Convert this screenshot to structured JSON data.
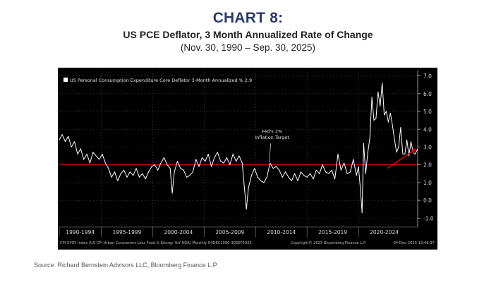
{
  "header": {
    "chart_label": "CHART 8:",
    "title": "US PCE Deflator, 3 Month Annualized Rate of Change",
    "subtitle": "(Nov. 30, 1990 – Sep. 30, 2025)"
  },
  "footer": {
    "source": "Source: Richard Bernstein Advisors LLC, Bloomberg Finance L.P."
  },
  "chart_data": {
    "type": "line",
    "title": "US PCE Deflator, 3 Month Annualized Rate of Change",
    "legend": {
      "label": "US Personal Consumption Expenditure Core Deflator 3-Month Annualized % 2.9",
      "placement": "top-left"
    },
    "ylim": [
      -1.5,
      7.3
    ],
    "y_ticks": [
      7.0,
      6.0,
      5.0,
      4.0,
      3.0,
      2.0,
      1.0,
      0.0,
      -1.0
    ],
    "y_tick_labels": [
      "7.0",
      "6.0",
      "5.0",
      "4.0",
      "3.0",
      "2.0",
      "1.0",
      "0.0",
      "-1.0"
    ],
    "xlim": [
      1990.92,
      2025.75
    ],
    "x_bands": [
      {
        "label": "1990-1994",
        "start": 1990.92,
        "end": 1995.0
      },
      {
        "label": "1995-1999",
        "start": 1995.0,
        "end": 2000.0
      },
      {
        "label": "2000-2004",
        "start": 2000.0,
        "end": 2005.0
      },
      {
        "label": "2005-2009",
        "start": 2005.0,
        "end": 2010.0
      },
      {
        "label": "2010-2014",
        "start": 2010.0,
        "end": 2015.0
      },
      {
        "label": "2015-2019",
        "start": 2015.0,
        "end": 2020.0
      },
      {
        "label": "2020-2024",
        "start": 2020.0,
        "end": 2025.0
      }
    ],
    "reference_line": {
      "y": 2.0,
      "color": "#e00000"
    },
    "annotation": {
      "lines": [
        "Fed's 2%",
        "Inflation Target"
      ],
      "x": 2011.6,
      "y": 2.0
    },
    "arrow": {
      "from": [
        2022.8,
        1.8
      ],
      "to": [
        2025.6,
        2.9
      ],
      "color": "#e00000"
    },
    "footer_left": "CPI XYOY Index (US CPI Urban Consumers Less Food & Energy YoY NSA) Monthly 04DEC1990-30SEP2025",
    "footer_right": "Copyright© 2025 Bloomberg Finance L.P.",
    "timestamp": "04-Dec-2025 13:46:37",
    "series": [
      {
        "name": "US Personal Consumption Expenditure Core Deflator 3-Month Annualized %",
        "last_value": 2.9,
        "color": "#ffffff",
        "x": [
          1990.92,
          1991.2,
          1991.5,
          1991.8,
          1992.1,
          1992.4,
          1992.7,
          1993.0,
          1993.3,
          1993.6,
          1993.9,
          1994.2,
          1994.5,
          1994.8,
          1995.1,
          1995.4,
          1995.7,
          1996.0,
          1996.3,
          1996.6,
          1996.9,
          1997.2,
          1997.5,
          1997.8,
          1998.1,
          1998.4,
          1998.7,
          1999.0,
          1999.3,
          1999.6,
          1999.9,
          2000.2,
          2000.5,
          2000.8,
          2001.1,
          2001.4,
          2001.7,
          2001.9,
          2002.1,
          2002.4,
          2002.7,
          2003.0,
          2003.3,
          2003.6,
          2003.9,
          2004.2,
          2004.5,
          2004.8,
          2005.1,
          2005.4,
          2005.7,
          2006.0,
          2006.3,
          2006.6,
          2006.9,
          2007.2,
          2007.5,
          2007.8,
          2008.1,
          2008.4,
          2008.7,
          2008.9,
          2009.1,
          2009.3,
          2009.6,
          2009.9,
          2010.2,
          2010.5,
          2010.8,
          2011.1,
          2011.4,
          2011.7,
          2012.0,
          2012.3,
          2012.6,
          2012.9,
          2013.2,
          2013.5,
          2013.8,
          2014.1,
          2014.4,
          2014.7,
          2015.0,
          2015.3,
          2015.6,
          2015.9,
          2016.2,
          2016.5,
          2016.8,
          2017.1,
          2017.4,
          2017.7,
          2018.0,
          2018.3,
          2018.6,
          2018.9,
          2019.2,
          2019.5,
          2019.8,
          2020.0,
          2020.2,
          2020.35,
          2020.5,
          2020.7,
          2020.9,
          2021.1,
          2021.3,
          2021.5,
          2021.7,
          2021.9,
          2022.1,
          2022.3,
          2022.5,
          2022.7,
          2022.9,
          2023.1,
          2023.3,
          2023.5,
          2023.7,
          2023.9,
          2024.1,
          2024.3,
          2024.5,
          2024.7,
          2024.9,
          2025.1,
          2025.3,
          2025.5,
          2025.75
        ],
        "y": [
          3.4,
          3.7,
          3.3,
          3.6,
          3.0,
          3.3,
          2.6,
          2.9,
          2.3,
          2.6,
          2.1,
          2.7,
          2.5,
          2.3,
          2.6,
          2.1,
          1.8,
          1.3,
          1.6,
          1.1,
          1.5,
          1.7,
          1.3,
          1.6,
          1.4,
          1.8,
          1.3,
          1.5,
          1.2,
          1.6,
          1.9,
          2.0,
          1.7,
          2.1,
          2.4,
          2.0,
          1.8,
          0.4,
          1.6,
          2.2,
          1.8,
          1.7,
          1.3,
          1.4,
          1.6,
          2.3,
          1.9,
          2.4,
          2.2,
          2.6,
          1.9,
          2.4,
          2.7,
          2.2,
          2.1,
          2.4,
          2.0,
          2.6,
          2.2,
          2.5,
          2.1,
          0.8,
          -0.5,
          0.7,
          1.4,
          1.8,
          1.3,
          1.1,
          1.0,
          1.3,
          2.1,
          1.8,
          1.9,
          1.7,
          1.3,
          1.6,
          1.3,
          1.1,
          1.5,
          1.1,
          1.6,
          1.4,
          1.3,
          1.5,
          1.2,
          1.7,
          1.5,
          2.0,
          1.6,
          1.5,
          1.7,
          1.2,
          2.6,
          1.7,
          2.1,
          1.5,
          1.6,
          2.3,
          1.4,
          1.9,
          0.5,
          -0.7,
          3.2,
          1.5,
          2.7,
          3.5,
          5.8,
          4.5,
          4.6,
          6.1,
          5.3,
          6.6,
          4.8,
          5.0,
          4.4,
          4.9,
          4.2,
          3.4,
          2.7,
          3.0,
          4.1,
          2.6,
          2.6,
          3.4,
          2.5,
          3.3,
          2.7,
          2.6,
          2.9
        ]
      }
    ]
  }
}
